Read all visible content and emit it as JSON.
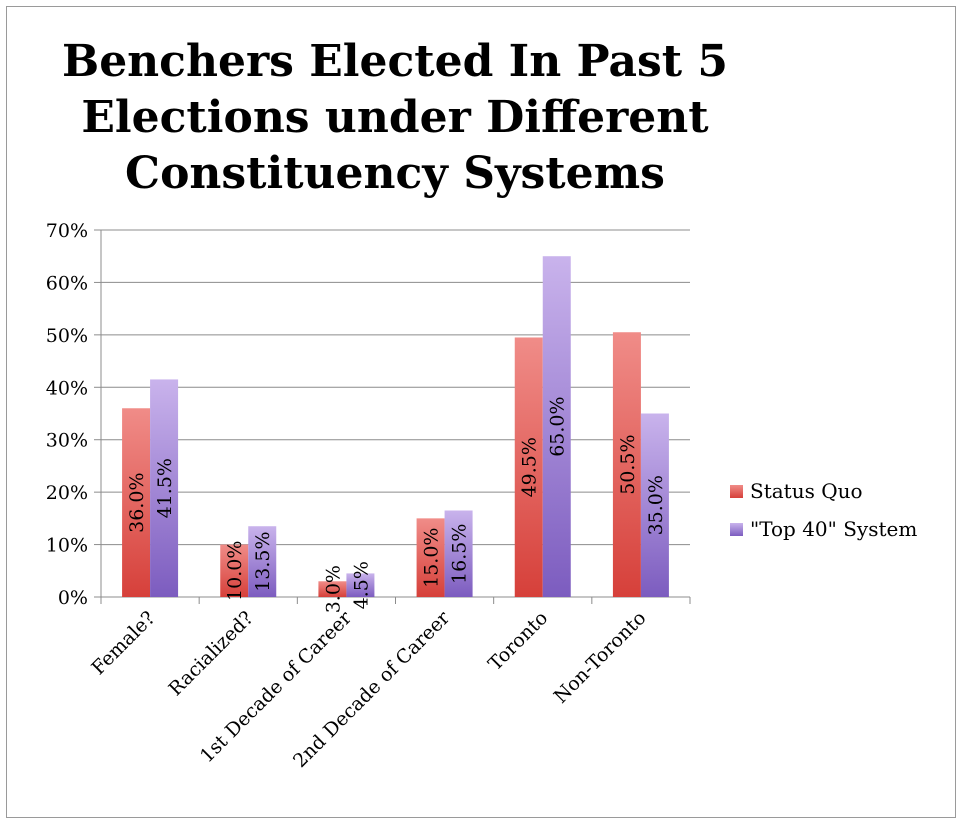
{
  "chart_data": {
    "type": "bar",
    "title_lines": [
      "Benchers Elected In Past 5",
      "Elections under Different",
      "Constituency Systems"
    ],
    "categories": [
      "Female?",
      "Racialized?",
      "1st Decade of Career",
      "2nd Decade of Career",
      "Toronto",
      "Non-Toronto"
    ],
    "series": [
      {
        "name": "Status Quo",
        "values": [
          36.0,
          10.0,
          3.0,
          15.0,
          49.5,
          50.5
        ],
        "color_top": "#f08c88",
        "color_bottom": "#d6403a"
      },
      {
        "name": "\"Top 40\" System",
        "values": [
          41.5,
          13.5,
          4.5,
          16.5,
          65.0,
          35.0
        ],
        "color_top": "#c9b3ec",
        "color_bottom": "#7c5cbf"
      }
    ],
    "data_labels": [
      [
        "36.0%",
        "10.0%",
        "3.0%",
        "15.0%",
        "49.5%",
        "50.5%"
      ],
      [
        "41.5%",
        "13.5%",
        "4.5%",
        "16.5%",
        "65.0%",
        "35.0%"
      ]
    ],
    "ylim": [
      0,
      70
    ],
    "yticks": [
      0,
      10,
      20,
      30,
      40,
      50,
      60,
      70
    ],
    "ytick_labels": [
      "0%",
      "10%",
      "20%",
      "30%",
      "40%",
      "50%",
      "60%",
      "70%"
    ],
    "grid": true,
    "legend_position": "right"
  }
}
